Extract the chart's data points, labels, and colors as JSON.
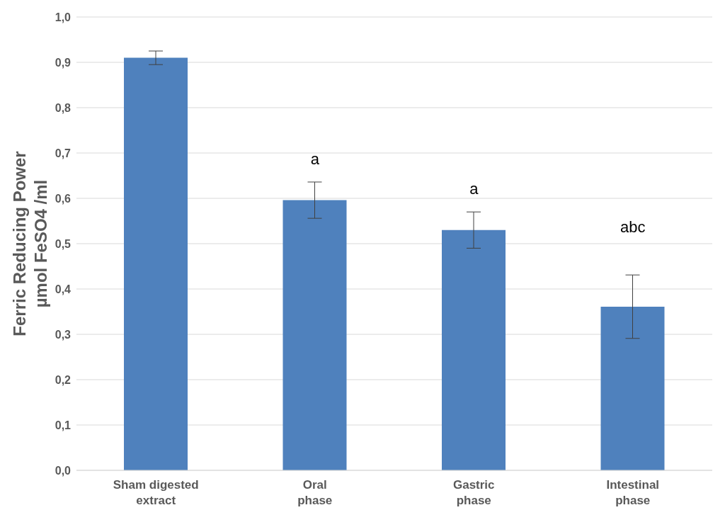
{
  "chart_data": {
    "type": "bar",
    "ylabel": "Ferric Reducing Power\nµmol FeSO4 /ml",
    "categories": [
      "Sham digested\nextract",
      "Oral\nphase",
      "Gastric\nphase",
      "Intestinal\nphase"
    ],
    "values": [
      0.91,
      0.596,
      0.53,
      0.361
    ],
    "errors": [
      0.015,
      0.04,
      0.04,
      0.07
    ],
    "color": "#4f81bd",
    "ylim": [
      0,
      1
    ],
    "yticks": [
      {
        "value": 0,
        "label": "0,0"
      },
      {
        "value": 0.1,
        "label": "0,1"
      },
      {
        "value": 0.2,
        "label": "0,2"
      },
      {
        "value": 0.3,
        "label": "0,3"
      },
      {
        "value": 0.4,
        "label": "0,4"
      },
      {
        "value": 0.5,
        "label": "0,5"
      },
      {
        "value": 0.6,
        "label": "0,6"
      },
      {
        "value": 0.7,
        "label": "0,7"
      },
      {
        "value": 0.8,
        "label": "0,8"
      },
      {
        "value": 0.9,
        "label": "0,9"
      },
      {
        "value": 1,
        "label": "1,0"
      }
    ],
    "grid": "y",
    "annotations": [
      {
        "text": "a",
        "x": "Oral\nphase",
        "y": 0.636
      },
      {
        "text": "a",
        "x": "Gastric\nphase",
        "y": 0.57
      },
      {
        "text": "abc",
        "x": "Intestinal\nphase",
        "y": 0.431
      }
    ]
  }
}
